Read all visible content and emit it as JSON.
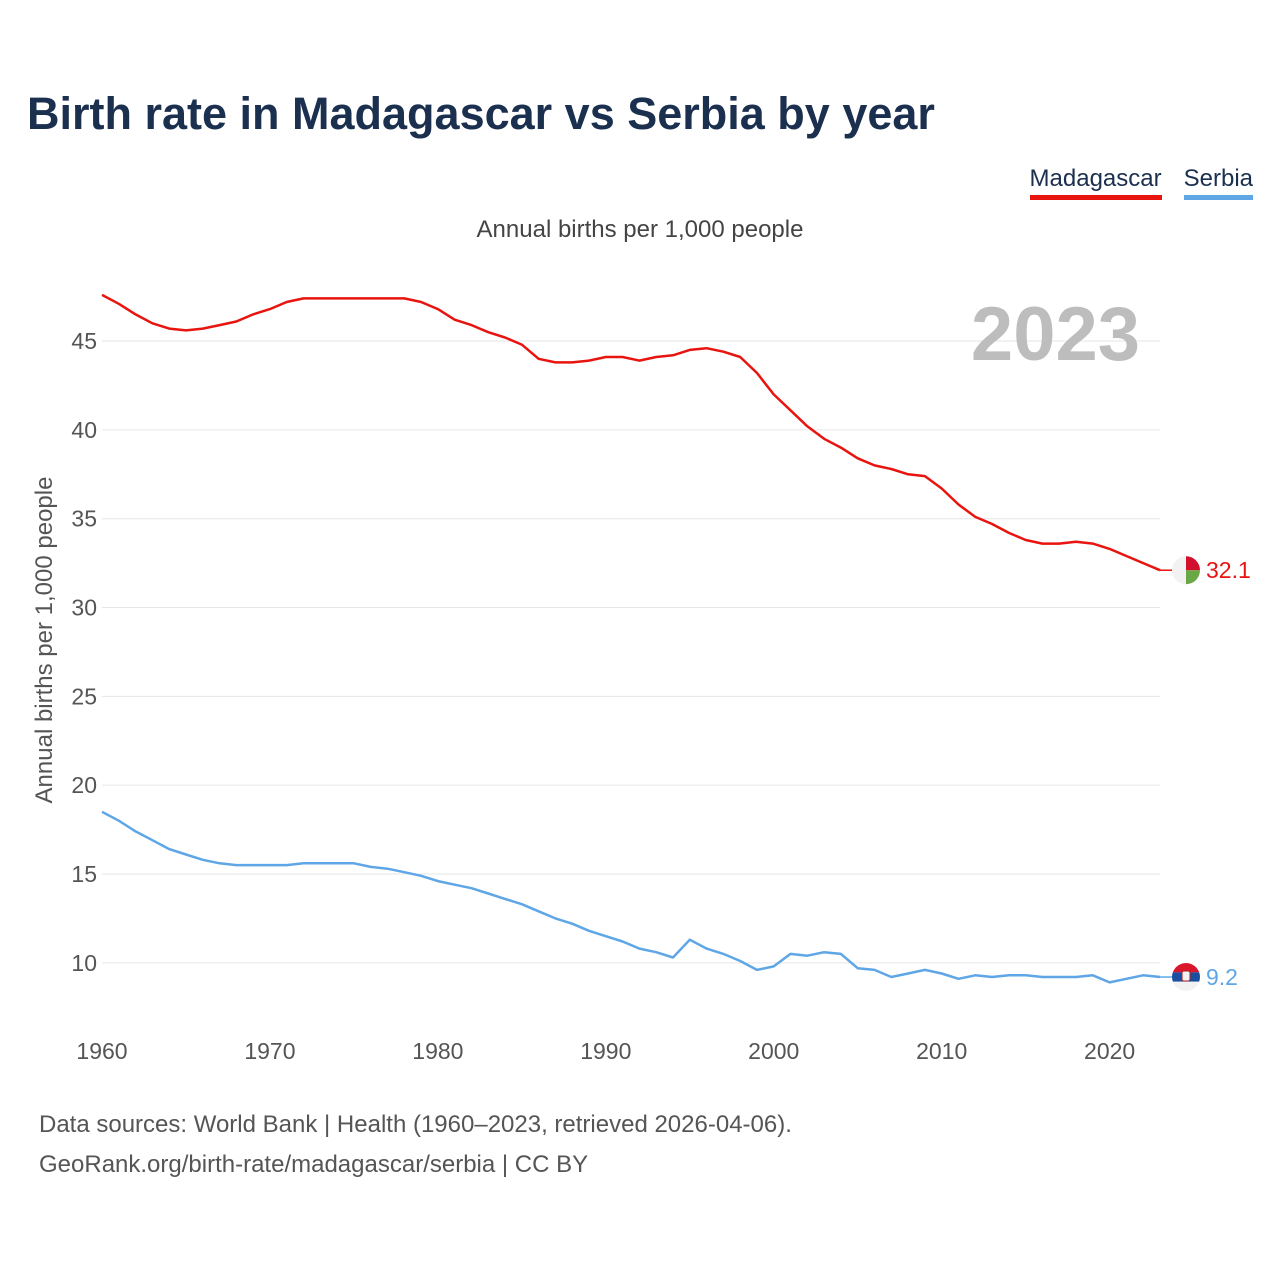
{
  "title": "Birth rate in Madagascar vs Serbia by year",
  "legend": [
    {
      "name": "Madagascar",
      "color": "#e8140f"
    },
    {
      "name": "Serbia",
      "color": "#5ea6e6"
    }
  ],
  "subtitle": "Annual births per 1,000 people",
  "year_watermark": "2023",
  "source_line1": "Data sources: World Bank | Health (1960–2023, retrieved 2026-04-06).",
  "source_line2": "GeoRank.org/birth-rate/madagascar/serbia | CC BY",
  "chart_data": {
    "type": "line",
    "title": "Birth rate in Madagascar vs Serbia by year",
    "xlabel": "",
    "ylabel": "Annual births per 1,000 people",
    "xlim": [
      1960,
      2023
    ],
    "ylim": [
      6.5,
      49
    ],
    "x_ticks": [
      1960,
      1970,
      1980,
      1990,
      2000,
      2010,
      2020
    ],
    "y_ticks": [
      10,
      15,
      20,
      25,
      30,
      35,
      40,
      45
    ],
    "grid": true,
    "x": [
      1960,
      1961,
      1962,
      1963,
      1964,
      1965,
      1966,
      1967,
      1968,
      1969,
      1970,
      1971,
      1972,
      1973,
      1974,
      1975,
      1976,
      1977,
      1978,
      1979,
      1980,
      1981,
      1982,
      1983,
      1984,
      1985,
      1986,
      1987,
      1988,
      1989,
      1990,
      1991,
      1992,
      1993,
      1994,
      1995,
      1996,
      1997,
      1998,
      1999,
      2000,
      2001,
      2002,
      2003,
      2004,
      2005,
      2006,
      2007,
      2008,
      2009,
      2010,
      2011,
      2012,
      2013,
      2014,
      2015,
      2016,
      2017,
      2018,
      2019,
      2020,
      2021,
      2022,
      2023
    ],
    "series": [
      {
        "name": "Madagascar",
        "color": "#e8140f",
        "end_label": "32.1",
        "values": [
          47.6,
          47.1,
          46.5,
          46.0,
          45.7,
          45.6,
          45.7,
          45.9,
          46.1,
          46.5,
          46.8,
          47.2,
          47.4,
          47.4,
          47.4,
          47.4,
          47.4,
          47.4,
          47.4,
          47.2,
          46.8,
          46.2,
          45.9,
          45.5,
          45.2,
          44.8,
          44.0,
          43.8,
          43.8,
          43.9,
          44.1,
          44.1,
          43.9,
          44.1,
          44.2,
          44.5,
          44.6,
          44.4,
          44.1,
          43.2,
          42.0,
          41.1,
          40.2,
          39.5,
          39.0,
          38.4,
          38.0,
          37.8,
          37.5,
          37.4,
          36.7,
          35.8,
          35.1,
          34.7,
          34.2,
          33.8,
          33.6,
          33.6,
          33.7,
          33.6,
          33.3,
          32.9,
          32.5,
          32.1
        ]
      },
      {
        "name": "Serbia",
        "color": "#5ea6e6",
        "end_label": "9.2",
        "values": [
          18.5,
          18.0,
          17.4,
          16.9,
          16.4,
          16.1,
          15.8,
          15.6,
          15.5,
          15.5,
          15.5,
          15.5,
          15.6,
          15.6,
          15.6,
          15.6,
          15.4,
          15.3,
          15.1,
          14.9,
          14.6,
          14.4,
          14.2,
          13.9,
          13.6,
          13.3,
          12.9,
          12.5,
          12.2,
          11.8,
          11.5,
          11.2,
          10.8,
          10.6,
          10.3,
          11.3,
          10.8,
          10.5,
          10.1,
          9.6,
          9.8,
          10.5,
          10.4,
          10.6,
          10.5,
          9.7,
          9.6,
          9.2,
          9.4,
          9.6,
          9.4,
          9.1,
          9.3,
          9.2,
          9.3,
          9.3,
          9.2,
          9.2,
          9.2,
          9.3,
          8.9,
          9.1,
          9.3,
          9.2
        ]
      }
    ]
  }
}
